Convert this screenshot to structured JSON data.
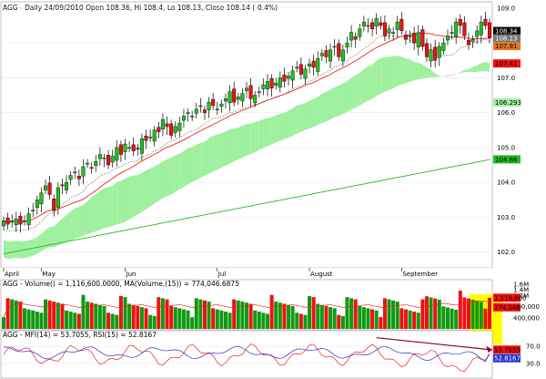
{
  "colors": {
    "up": "#22c022",
    "down": "#ee1111",
    "vol_up": "#119911",
    "vol_down": "#ee1111",
    "cloud_bull": "#9ef09e",
    "cloud_bear": "#ffb3b3",
    "ma_short": "#ee2222",
    "ma_long": "#22bb22",
    "dotted": "#666666",
    "mfi": "#ee2222",
    "rsi": "#2233cc",
    "highlight": "#ffff00",
    "trend_arrow": "#880033"
  },
  "header": {
    "title": "AGG - Daily 24/09/2010 Open 108.36, Hi 108.4, Lo 108.13, Close 108.14 (-0.4%)"
  },
  "price_panel": {
    "y_ticks": [
      {
        "value": 102.0,
        "label": "102.0"
      },
      {
        "value": 103.0,
        "label": "103.0"
      },
      {
        "value": 104.0,
        "label": "104.0"
      },
      {
        "value": 105.0,
        "label": "105.0"
      },
      {
        "value": 106.0,
        "label": "106.0"
      },
      {
        "value": 107.0,
        "label": "107.0"
      },
      {
        "value": 108.0,
        "label": "108.0"
      },
      {
        "value": 109.0,
        "label": "109.0"
      }
    ],
    "value_tags": [
      {
        "value": 108.34,
        "label": "108.34",
        "bg": "#000000",
        "fg": "#ffffff"
      },
      {
        "value": 108.13,
        "label": "108.13",
        "bg": "#777777",
        "fg": "#ffffff"
      },
      {
        "value": 107.91,
        "label": "107.91",
        "bg": "#e87722",
        "fg": "#000000"
      },
      {
        "value": 107.41,
        "label": "107.41",
        "bg": "#ee1111",
        "fg": "#000000"
      },
      {
        "value": 106.293,
        "label": "106.293",
        "bg": "#9ef09e",
        "fg": "#000000"
      },
      {
        "value": 104.66,
        "label": "104.66",
        "bg": "#22bb22",
        "fg": "#000000"
      }
    ]
  },
  "x_axis": {
    "labels": [
      {
        "bar": 0,
        "label": "April"
      },
      {
        "bar": 9,
        "label": "May"
      },
      {
        "bar": 29,
        "label": "Jun"
      },
      {
        "bar": 51,
        "label": "Jul"
      },
      {
        "bar": 73,
        "label": "August"
      },
      {
        "bar": 95,
        "label": "September"
      }
    ]
  },
  "volume_panel": {
    "label": "AGG - Volume() = 1,116,600.0000, MA(Volume,(15)) = 774,046.6875",
    "y_ticks": [
      {
        "value": 1600000,
        "label": "1.6M"
      },
      {
        "value": 1400000,
        "label": "1.4M"
      },
      {
        "value": 1200000,
        "label": "1.2M"
      },
      {
        "value": 800000,
        "label": "800,000"
      },
      {
        "value": 400000,
        "label": "400,000"
      }
    ],
    "value_tags": [
      {
        "value": 1116600,
        "label": "1,116,600",
        "bg": "#ee1111",
        "fg": "#000000"
      },
      {
        "value": 774046,
        "label": "774,046",
        "bg": "#ee1111",
        "fg": "#000000"
      }
    ]
  },
  "indicator_panel": {
    "label": "AGG - MFI(14) = 53.7055, RSI(15) = 52.8167",
    "y_ticks": [
      {
        "value": 70,
        "label": "70.0"
      },
      {
        "value": 30,
        "label": "30.0"
      }
    ],
    "value_tags": [
      {
        "value": 53.7055,
        "label": "53.7055",
        "bg": "#ee1111",
        "fg": "#000000"
      },
      {
        "value": 52.8167,
        "label": "52.8167",
        "bg": "#2233cc",
        "fg": "#ffffff"
      }
    ]
  },
  "chart_data": {
    "type": "candlestick",
    "title": "AGG - Daily 24/09/2010 Open 108.36, Hi 108.4, Lo 108.13, Close 108.14 (-0.4%)",
    "x_month_labels": [
      "April",
      "May",
      "Jun",
      "Jul",
      "August",
      "September"
    ],
    "price_range": [
      101.6,
      109.1
    ],
    "close_values": [
      102.9,
      102.8,
      102.9,
      102.95,
      102.8,
      102.9,
      103.1,
      103.2,
      103.5,
      103.7,
      103.9,
      103.65,
      103.2,
      103.85,
      103.9,
      104.0,
      104.2,
      104.3,
      104.1,
      104.45,
      104.55,
      104.4,
      104.6,
      104.8,
      104.7,
      104.5,
      104.75,
      105.0,
      104.8,
      105.1,
      105.0,
      104.9,
      104.95,
      105.25,
      105.2,
      105.3,
      105.5,
      105.45,
      105.8,
      105.6,
      105.35,
      105.6,
      105.7,
      105.9,
      106.0,
      105.9,
      106.1,
      106.2,
      106.0,
      106.3,
      106.2,
      106.1,
      106.25,
      106.4,
      106.6,
      106.3,
      106.45,
      106.55,
      106.7,
      106.4,
      106.5,
      106.6,
      106.8,
      106.9,
      106.7,
      106.85,
      107.0,
      106.9,
      107.05,
      107.2,
      107.3,
      107.1,
      107.25,
      107.4,
      107.3,
      107.55,
      107.7,
      107.6,
      107.8,
      107.9,
      107.6,
      107.8,
      108.0,
      108.3,
      108.1,
      108.4,
      108.6,
      108.5,
      108.4,
      108.7,
      108.5,
      108.2,
      108.4,
      108.3,
      108.6,
      108.35,
      108.1,
      108.2,
      108.0,
      108.3,
      107.9,
      107.6,
      107.8,
      107.5,
      107.9,
      108.0,
      108.2,
      108.3,
      108.6,
      108.5,
      108.2,
      107.95,
      108.1,
      108.35,
      108.6,
      108.5,
      108.14
    ],
    "series": [
      {
        "name": "Volume",
        "last": 1116600
      },
      {
        "name": "MA(Volume,(15))",
        "last": 774046.6875
      },
      {
        "name": "MFI(14)",
        "last": 53.7055
      },
      {
        "name": "RSI(15)",
        "last": 52.8167
      }
    ],
    "volume_range": [
      0,
      1700000
    ],
    "indicator_range": [
      0,
      100
    ]
  }
}
